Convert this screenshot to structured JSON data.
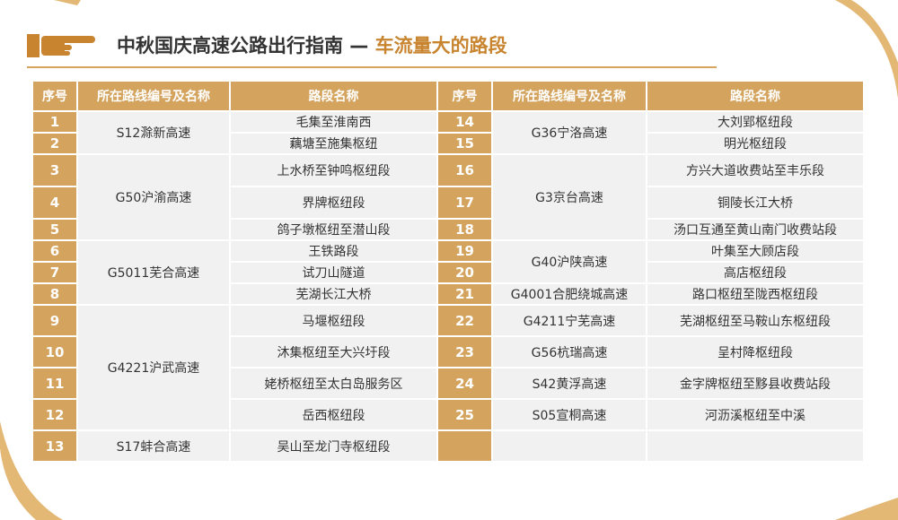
{
  "title": {
    "main": "中秋国庆高速公路出行指南 — ",
    "highlight": "车流量大的路段"
  },
  "headers": {
    "num": "序号",
    "route": "所在路线编号及名称",
    "section": "路段名称"
  },
  "left": {
    "nums": [
      "1",
      "2",
      "3",
      "4",
      "5",
      "6",
      "7",
      "8",
      "9",
      "10",
      "11",
      "12",
      "13"
    ],
    "routes": [
      "S12滁新高速",
      "G50沪渝高速",
      "G5011芜合高速",
      "G4221沪武高速",
      "S17蚌合高速"
    ],
    "sections": [
      "毛集至淮南西",
      "藕塘至施集枢纽",
      "上水桥至钟鸣枢纽段",
      "界牌枢纽段",
      "鸽子墩枢纽至潜山段",
      "王铁路段",
      "试刀山隧道",
      "芜湖长江大桥",
      "马堰枢纽段",
      "沐集枢纽至大兴圩段",
      "姥桥枢纽至太白岛服务区",
      "岳西枢纽段",
      "吴山至龙门寺枢纽段"
    ]
  },
  "right": {
    "nums": [
      "14",
      "15",
      "16",
      "17",
      "18",
      "19",
      "20",
      "21",
      "22",
      "23",
      "24",
      "25"
    ],
    "routes": [
      "G36宁洛高速",
      "G3京台高速",
      "G40沪陕高速",
      "G4001合肥绕城高速",
      "G4211宁芜高速",
      "G56杭瑞高速",
      "S42黄浮高速",
      "S05宣桐高速"
    ],
    "sections": [
      "大刘郢枢纽段",
      "明光枢纽段",
      "方兴大道收费站至丰乐段",
      "铜陵长江大桥",
      "汤口互通至黄山南门收费站段",
      "叶集至大顾店段",
      "高店枢纽段",
      "路口枢纽至陇西枢纽段",
      "芜湖枢纽至马鞍山东枢纽段",
      "呈村降枢纽段",
      "金字牌枢纽至黟县收费站段",
      "河沥溪枢纽至中溪"
    ]
  },
  "colors": {
    "accent": "#d4a45e",
    "highlight": "#c8842f",
    "cell": "#f1f1f1"
  }
}
